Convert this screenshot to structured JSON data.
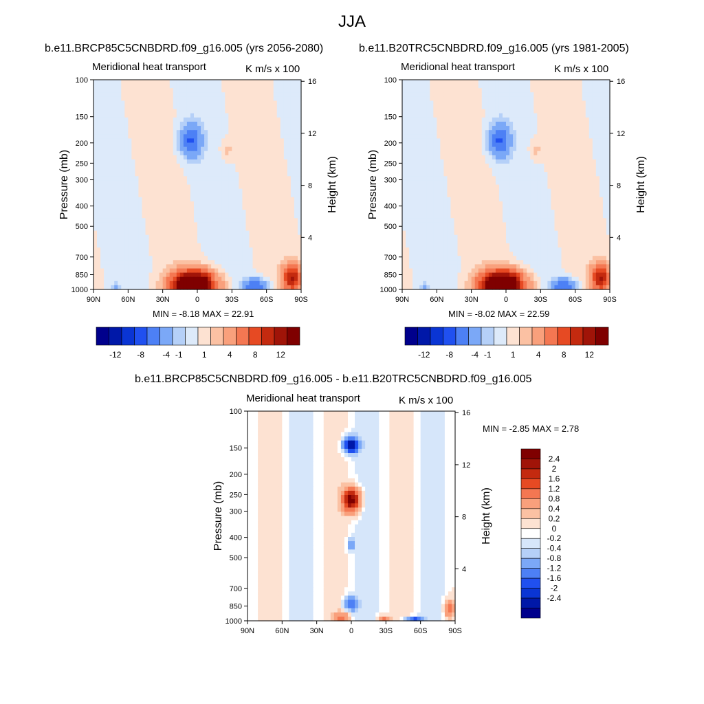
{
  "title": "JJA",
  "chart_data": [
    {
      "type": "heatmap",
      "case": "b.e11.BRCP85C5CNBDRD.f09_g16.005 (yrs 2056-2080)",
      "title": "Meridional heat transport",
      "units": "K m/s x 100",
      "xlabel": "",
      "ylabel": "Pressure (mb)",
      "y2label": "Height (km)",
      "xticks": [
        "90N",
        "60N",
        "30N",
        "0",
        "30S",
        "60S",
        "90S"
      ],
      "xlim": [
        90,
        -90
      ],
      "yticks": [
        "100",
        "150",
        "200",
        "250",
        "300",
        "400",
        "500",
        "700",
        "850",
        "1000"
      ],
      "ylim": [
        1000,
        100
      ],
      "y2ticks": [
        "16",
        "12",
        "8",
        "4"
      ],
      "min_label": "MIN =  -8.18  MAX =  22.91",
      "min": -8.18,
      "max": 22.91,
      "colorbar_ticks": [
        "-12",
        "-8",
        "-4",
        "-1",
        "1",
        "4",
        "8",
        "12"
      ],
      "features": [
        {
          "lat": 6,
          "p": 195,
          "value": -6,
          "wx": 9,
          "wp": 0.18
        },
        {
          "lat": -26,
          "p": 215,
          "value": 1.5,
          "wx": 6,
          "wp": 0.11
        },
        {
          "lat": 3,
          "p": 960,
          "value": 22,
          "wx": 18,
          "wp": 0.15
        },
        {
          "lat": -50,
          "p": 960,
          "value": -6,
          "wx": 10,
          "wp": 0.08
        },
        {
          "lat": -82,
          "p": 880,
          "value": 10,
          "wx": 8,
          "wp": 0.14
        },
        {
          "lat": -14,
          "p": 950,
          "value": -3,
          "wx": 4,
          "wp": 0.08
        },
        {
          "lat": 70,
          "p": 990,
          "value": -2,
          "wx": 4,
          "wp": 0.06
        }
      ]
    },
    {
      "type": "heatmap",
      "case": "b.e11.B20TRC5CNBDRD.f09_g16.005 (yrs 1981-2005)",
      "title": "Meridional heat transport",
      "units": "K m/s x 100",
      "xlabel": "",
      "ylabel": "Pressure (mb)",
      "y2label": "Height (km)",
      "xticks": [
        "90N",
        "60N",
        "30N",
        "0",
        "30S",
        "60S",
        "90S"
      ],
      "xlim": [
        90,
        -90
      ],
      "yticks": [
        "100",
        "150",
        "200",
        "250",
        "300",
        "400",
        "500",
        "700",
        "850",
        "1000"
      ],
      "ylim": [
        1000,
        100
      ],
      "y2ticks": [
        "16",
        "12",
        "8",
        "4"
      ],
      "min_label": "MIN =  -8.02  MAX =  22.59",
      "min": -8.02,
      "max": 22.59,
      "colorbar_ticks": [
        "-12",
        "-8",
        "-4",
        "-1",
        "1",
        "4",
        "8",
        "12"
      ],
      "features": [
        {
          "lat": 6,
          "p": 195,
          "value": -6,
          "wx": 9,
          "wp": 0.18
        },
        {
          "lat": -26,
          "p": 215,
          "value": 1.5,
          "wx": 6,
          "wp": 0.11
        },
        {
          "lat": 3,
          "p": 960,
          "value": 22,
          "wx": 18,
          "wp": 0.15
        },
        {
          "lat": -50,
          "p": 960,
          "value": -6,
          "wx": 10,
          "wp": 0.08
        },
        {
          "lat": -82,
          "p": 880,
          "value": 10,
          "wx": 8,
          "wp": 0.14
        },
        {
          "lat": -14,
          "p": 950,
          "value": -3,
          "wx": 4,
          "wp": 0.08
        },
        {
          "lat": 70,
          "p": 990,
          "value": -2,
          "wx": 4,
          "wp": 0.06
        }
      ]
    },
    {
      "type": "heatmap",
      "case": "b.e11.BRCP85C5CNBDRD.f09_g16.005 - b.e11.B20TRC5CNBDRD.f09_g16.005",
      "title": "Meridional heat transport",
      "units": "K m/s x 100",
      "xlabel": "",
      "ylabel": "Pressure (mb)",
      "y2label": "Height (km)",
      "xticks": [
        "90N",
        "60N",
        "30N",
        "0",
        "30S",
        "60S",
        "90S"
      ],
      "xlim": [
        90,
        -90
      ],
      "yticks": [
        "100",
        "150",
        "200",
        "250",
        "300",
        "400",
        "500",
        "700",
        "850",
        "1000"
      ],
      "ylim": [
        1000,
        100
      ],
      "y2ticks": [
        "16",
        "12",
        "8",
        "4"
      ],
      "min_label": "MIN =  -2.85  MAX =   2.78",
      "min": -2.85,
      "max": 2.78,
      "colorbar_ticks": [
        "2.4",
        "2",
        "1.6",
        "1.2",
        "0.8",
        "0.4",
        "0.2",
        "0",
        "-0.2",
        "-0.4",
        "-0.8",
        "-1.2",
        "-1.6",
        "-2",
        "-2.4"
      ],
      "features": [
        {
          "lat": 0,
          "p": 145,
          "value": -2.6,
          "wx": 6,
          "wp": 0.08
        },
        {
          "lat": 0,
          "p": 265,
          "value": 2.7,
          "wx": 7,
          "wp": 0.12
        },
        {
          "lat": 0,
          "p": 430,
          "value": -0.9,
          "wx": 3,
          "wp": 0.06
        },
        {
          "lat": 0,
          "p": 830,
          "value": -1.0,
          "wx": 6,
          "wp": 0.08
        },
        {
          "lat": 8,
          "p": 965,
          "value": 1.0,
          "wx": 6,
          "wp": 0.06
        },
        {
          "lat": -28,
          "p": 985,
          "value": 0.9,
          "wx": 5,
          "wp": 0.04
        },
        {
          "lat": -55,
          "p": 985,
          "value": -1.5,
          "wx": 7,
          "wp": 0.03
        },
        {
          "lat": -85,
          "p": 880,
          "value": 0.9,
          "wx": 4,
          "wp": 0.1
        }
      ]
    }
  ],
  "colors": {
    "colormap_12": [
      "#00008c",
      "#0018a8",
      "#0a35d4",
      "#2050f0",
      "#4d80f5",
      "#7ba8f7",
      "#b5d0f8",
      "#ddeafa",
      "#fde2d2",
      "#fbc1a3",
      "#f9a07c",
      "#f47752",
      "#e64a23",
      "#c42a0f",
      "#a01408",
      "#7f0000"
    ],
    "colormap_diff": [
      "#00008c",
      "#0018a8",
      "#0a35d4",
      "#2050f0",
      "#4d80f5",
      "#7ba8f7",
      "#b5d0f8",
      "#d6e6fa",
      "#ffffff",
      "#fde2d2",
      "#fbc1a3",
      "#f9a07c",
      "#f47752",
      "#e64a23",
      "#c42a0f",
      "#a01408",
      "#7f0000"
    ]
  }
}
